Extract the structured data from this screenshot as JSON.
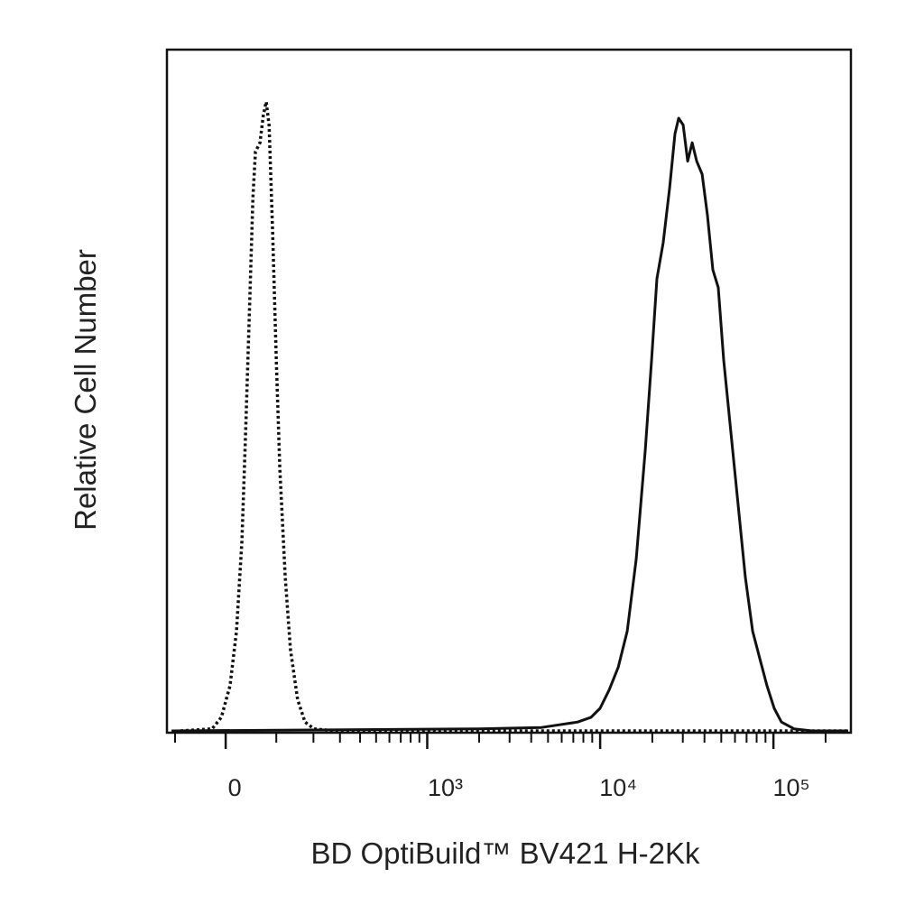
{
  "chart_data": {
    "type": "line",
    "xlabel": "BD OptiBuild™ BV421 H-2Kk",
    "ylabel": "Relative Cell Number",
    "xscale": "arcsinh",
    "xlim": [
      -119,
      280000
    ],
    "ylim": [
      0,
      100
    ],
    "xticks": [
      0,
      {
        "value": 1000,
        "label": "10³"
      },
      {
        "value": 10000,
        "label": "10⁴"
      },
      {
        "value": 100000,
        "label": "10⁵"
      }
    ],
    "xminorticks": [
      -100,
      100,
      200,
      300,
      400,
      500,
      600,
      700,
      800,
      900,
      2000,
      3000,
      4000,
      5000,
      6000,
      7000,
      8000,
      9000,
      20000,
      30000,
      40000,
      50000,
      60000,
      70000,
      80000,
      90000,
      200000
    ],
    "series": [
      {
        "color": "#111111",
        "linestyle": "dotted",
        "x": [
          -88,
          -25,
          -8,
          8,
          20,
          30,
          37,
          44,
          51,
          56,
          65,
          72,
          78,
          84,
          92,
          100,
          108,
          121,
          134,
          153,
          174,
          202,
          275,
          270000
        ],
        "values": [
          0,
          0.3,
          2,
          6.6,
          14.6,
          27.8,
          43.7,
          60.9,
          78.1,
          84.8,
          86.1,
          90.1,
          92.1,
          88.7,
          72.8,
          54.3,
          38.4,
          22.5,
          11.9,
          4.6,
          1.3,
          0.3,
          0,
          0
        ]
      },
      {
        "color": "#111111",
        "linestyle": "solid",
        "x": [
          -108,
          1980,
          4590,
          5830,
          7410,
          8860,
          9990,
          11270,
          12710,
          14330,
          16160,
          18220,
          19800,
          21270,
          23130,
          25160,
          27030,
          28370,
          30120,
          31990,
          33970,
          36060,
          38750,
          41630,
          44730,
          48060,
          51640,
          56830,
          62560,
          68860,
          75830,
          83430,
          91850,
          101100,
          111270,
          131610,
          167260,
          270070
        ],
        "values": [
          0,
          0.3,
          0.5,
          0.9,
          1.3,
          2,
          3.3,
          6,
          9.3,
          14.6,
          25.2,
          41.1,
          54.3,
          66.2,
          71.5,
          79.5,
          87.4,
          89.7,
          88.7,
          83.4,
          86.1,
          83.4,
          81.5,
          75.5,
          67.5,
          64.9,
          54.3,
          43.7,
          33.1,
          22.5,
          14.6,
          10.6,
          6.6,
          3.3,
          1.3,
          0.3,
          0,
          0
        ]
      }
    ]
  }
}
